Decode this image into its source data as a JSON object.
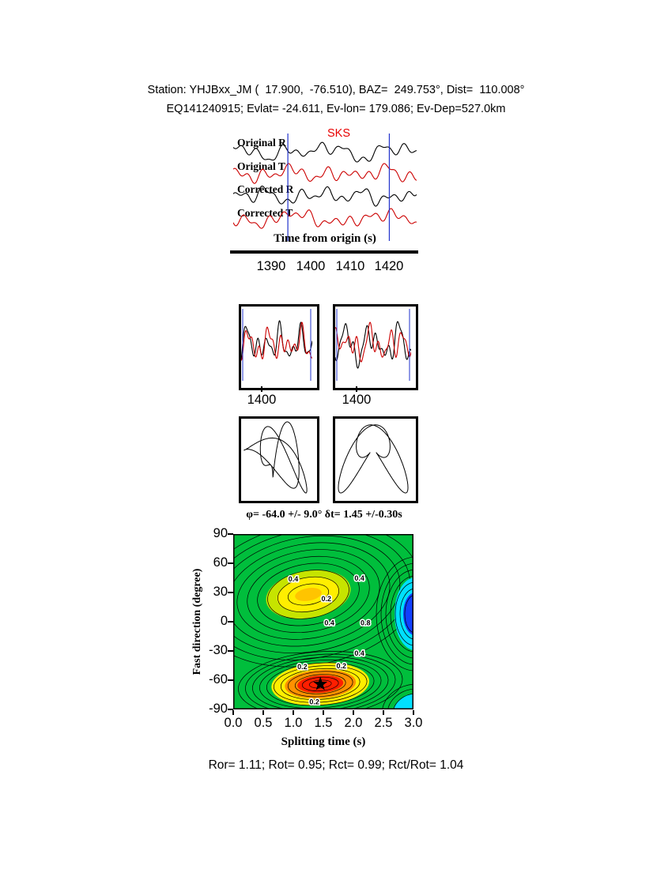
{
  "header": {
    "station_line": "Station: YHJBxx_JM (  17.900,  -76.510), BAZ=  249.753°, Dist=  110.008°",
    "event_line": "EQ141240915; Evlat= -24.611, Ev-lon= 179.086; Ev-Dep=527.0km"
  },
  "waveform_panel": {
    "phase_label": "SKS",
    "trace_labels": [
      "Original R",
      "Original T",
      "Corrected R",
      "Corrected T"
    ],
    "xlabel": "Time from origin (s)",
    "xticks": [
      "1390",
      "1400",
      "1410",
      "1420"
    ]
  },
  "window_panels": {
    "tick_labels": [
      "1400",
      "1400"
    ]
  },
  "result_line": "φ= -64.0 +/- 9.0° δt= 1.45 +/-0.30s",
  "contour": {
    "ylabel": "Fast direction (degree)",
    "xlabel": "Splitting time (s)",
    "yticks": [
      "90",
      "60",
      "30",
      "0",
      "-30",
      "-60",
      "-90"
    ],
    "xticks": [
      "0.0",
      "0.5",
      "1.0",
      "1.5",
      "2.0",
      "2.5",
      "3.0"
    ]
  },
  "footer": "Ror= 1.11; Rot= 0.95; Rct= 0.99; Rct/Rot= 1.04",
  "metrics": {
    "Ror": 1.11,
    "Rot": 0.95,
    "Rct": 0.99,
    "Rct_over_Rot": 1.04
  },
  "chart_data": [
    {
      "type": "line",
      "title": "SKS phase waveforms",
      "xlabel": "Time from origin (s)",
      "xticks": [
        1390,
        1400,
        1410,
        1420
      ],
      "xlim": [
        1380,
        1427
      ],
      "window_s": [
        1394,
        1420
      ],
      "phase_label": "SKS",
      "series": [
        {
          "name": "Original R",
          "color": "#000000"
        },
        {
          "name": "Original T",
          "color": "#cc0000"
        },
        {
          "name": "Corrected R",
          "color": "#000000"
        },
        {
          "name": "Corrected T",
          "color": "#cc0000"
        }
      ]
    },
    {
      "type": "line",
      "title": "Windowed waveforms (R black, T red)",
      "panels": 2,
      "xticks": [
        1400,
        1400
      ]
    },
    {
      "type": "scatter",
      "title": "Particle motion hodograms (uncorrected, corrected)",
      "panels": 2
    },
    {
      "type": "heatmap",
      "title": "φ= -64.0 +/- 9.0° δt= 1.45 +/-0.30s",
      "xlabel": "Splitting time (s)",
      "ylabel": "Fast direction (degree)",
      "xlim": [
        0,
        3
      ],
      "ylim": [
        -90,
        90
      ],
      "xticks": [
        0.0,
        0.5,
        1.0,
        1.5,
        2.0,
        2.5,
        3.0
      ],
      "yticks": [
        90,
        60,
        30,
        0,
        -30,
        -60,
        -90
      ],
      "best_fit": {
        "phi_deg": -64.0,
        "phi_err_deg": 9.0,
        "dt_s": 1.45,
        "dt_err_s": 0.3,
        "marker": "star"
      },
      "contour_levels": [
        0.2,
        0.4,
        0.6,
        0.8
      ],
      "annotations": [
        {
          "label": "0.4",
          "t": 1.0,
          "phi": 44
        },
        {
          "label": "0.4",
          "t": 2.1,
          "phi": 45
        },
        {
          "label": "0.2",
          "t": 1.55,
          "phi": 24
        },
        {
          "label": "0.4",
          "t": 1.6,
          "phi": -1
        },
        {
          "label": "0.8",
          "t": 2.2,
          "phi": -1
        },
        {
          "label": "0.4",
          "t": 2.1,
          "phi": -32
        },
        {
          "label": "0.2",
          "t": 1.8,
          "phi": -45
        },
        {
          "label": "0.2",
          "t": 1.15,
          "phi": -46
        },
        {
          "label": "0.2",
          "t": 1.35,
          "phi": -82
        }
      ],
      "regions": {
        "maximum_yellow": {
          "t": 1.25,
          "phi": 28
        },
        "minimum_red": {
          "t": 1.45,
          "phi": -64
        },
        "blue_edge": {
          "t": 3.0,
          "phi": 8
        }
      },
      "colors": {
        "background": "#00be3c",
        "yellow": "#ffee00",
        "orange": "#ff9100",
        "red": "#ff1e00",
        "blue": "#1040ff",
        "cyan": "#00e0ff"
      }
    }
  ]
}
